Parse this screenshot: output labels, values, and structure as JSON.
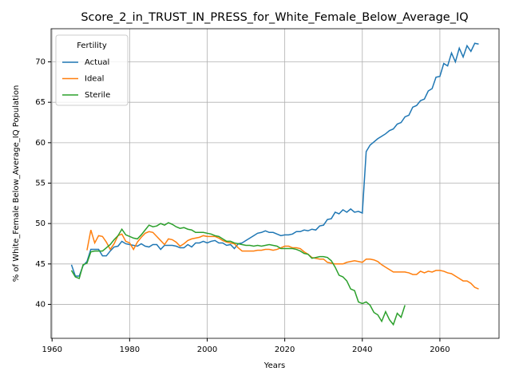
{
  "chart_data": {
    "type": "line",
    "title": "Score_2_in_TRUST_IN_PRESS_for_White_Female_Below_Average_IQ",
    "xlabel": "Years",
    "ylabel": "% of White_Female Below_Average_IQ Population",
    "legend_title": "Fertility",
    "legend_loc": "upper left",
    "grid": true,
    "xlim": [
      1959.75,
      2075.25
    ],
    "ylim": [
      35.8,
      74.1
    ],
    "xticks": [
      1960,
      1980,
      2000,
      2020,
      2040,
      2060
    ],
    "yticks": [
      40,
      45,
      50,
      55,
      60,
      65,
      70
    ],
    "x": [
      1965,
      1966,
      1967,
      1968,
      1969,
      1970,
      1971,
      1972,
      1973,
      1974,
      1975,
      1976,
      1977,
      1978,
      1979,
      1980,
      1981,
      1982,
      1983,
      1984,
      1985,
      1986,
      1987,
      1988,
      1989,
      1990,
      1991,
      1992,
      1993,
      1994,
      1995,
      1996,
      1997,
      1998,
      1999,
      2000,
      2001,
      2002,
      2003,
      2004,
      2005,
      2006,
      2007,
      2008,
      2009,
      2010,
      2011,
      2012,
      2013,
      2014,
      2015,
      2016,
      2017,
      2018,
      2019,
      2020,
      2021,
      2022,
      2023,
      2024,
      2025,
      2026,
      2027,
      2028,
      2029,
      2030,
      2031,
      2032,
      2033,
      2034,
      2035,
      2036,
      2037,
      2038,
      2039,
      2040,
      2041,
      2042,
      2043,
      2044,
      2045,
      2046,
      2047,
      2048,
      2049,
      2050,
      2051,
      2052,
      2053,
      2054,
      2055,
      2056,
      2057,
      2058,
      2059,
      2060,
      2061,
      2062,
      2063,
      2064,
      2065,
      2066,
      2067,
      2068,
      2069,
      2070
    ],
    "series": [
      {
        "name": "Actual",
        "color": "#1f77b4",
        "values": [
          44.9,
          43.5,
          43.5,
          44.8,
          45.3,
          46.8,
          46.8,
          46.8,
          46.0,
          46.0,
          46.6,
          47.1,
          47.2,
          47.8,
          47.5,
          47.4,
          47.3,
          47.2,
          47.5,
          47.2,
          47.1,
          47.4,
          47.4,
          46.8,
          47.3,
          47.3,
          47.3,
          47.2,
          47.0,
          47.0,
          47.4,
          47.1,
          47.6,
          47.6,
          47.8,
          47.6,
          47.8,
          47.9,
          47.6,
          47.6,
          47.3,
          47.4,
          46.9,
          47.5,
          47.6,
          47.9,
          48.2,
          48.5,
          48.8,
          48.9,
          49.1,
          48.9,
          48.9,
          48.7,
          48.5,
          48.6,
          48.6,
          48.7,
          49.0,
          49.0,
          49.2,
          49.1,
          49.3,
          49.2,
          49.7,
          49.8,
          50.5,
          50.6,
          51.4,
          51.2,
          51.7,
          51.4,
          51.8,
          51.4,
          51.5,
          51.3,
          58.9,
          59.7,
          60.1,
          60.5,
          60.8,
          61.1,
          61.5,
          61.7,
          62.3,
          62.5,
          63.2,
          63.4,
          64.4,
          64.6,
          65.2,
          65.4,
          66.4,
          66.7,
          68.1,
          68.2,
          69.8,
          69.5,
          71.1,
          70.0,
          71.7,
          70.6,
          72.0,
          71.3,
          72.3,
          72.2
        ]
      },
      {
        "name": "Ideal",
        "color": "#ff7f0e",
        "values": [
          null,
          null,
          null,
          null,
          46.7,
          49.2,
          47.6,
          48.5,
          48.4,
          47.7,
          46.8,
          47.5,
          48.5,
          48.7,
          47.8,
          47.6,
          46.8,
          47.7,
          48.3,
          48.8,
          49.0,
          48.9,
          48.4,
          47.9,
          47.4,
          48.1,
          48.0,
          47.7,
          47.2,
          47.5,
          47.9,
          48.1,
          48.2,
          48.3,
          48.5,
          48.4,
          48.4,
          48.4,
          48.2,
          47.9,
          47.7,
          47.6,
          47.5,
          47.0,
          46.6,
          46.6,
          46.6,
          46.6,
          46.7,
          46.7,
          46.8,
          46.8,
          46.7,
          46.8,
          47.0,
          47.2,
          47.2,
          47.0,
          47.0,
          46.9,
          46.5,
          46.2,
          45.8,
          45.7,
          45.6,
          45.6,
          45.2,
          45.1,
          45.0,
          45.0,
          45.0,
          45.2,
          45.3,
          45.4,
          45.3,
          45.2,
          45.6,
          45.6,
          45.5,
          45.3,
          44.9,
          44.6,
          44.3,
          44.0,
          44.0,
          44.0,
          44.0,
          43.9,
          43.7,
          43.7,
          44.1,
          43.9,
          44.1,
          44.0,
          44.2,
          44.2,
          44.1,
          43.9,
          43.8,
          43.5,
          43.2,
          42.9,
          42.9,
          42.6,
          42.1,
          41.9
        ]
      },
      {
        "name": "Sterile",
        "color": "#2ca02c",
        "values": [
          44.2,
          43.4,
          43.2,
          44.9,
          45.1,
          46.5,
          46.6,
          46.6,
          46.6,
          47.0,
          47.4,
          48.0,
          48.5,
          49.3,
          48.6,
          48.4,
          48.2,
          48.1,
          48.6,
          49.2,
          49.8,
          49.6,
          49.7,
          50.0,
          49.8,
          50.1,
          49.9,
          49.6,
          49.4,
          49.5,
          49.3,
          49.2,
          48.9,
          48.9,
          48.9,
          48.8,
          48.7,
          48.5,
          48.4,
          48.1,
          47.8,
          47.8,
          47.6,
          47.5,
          47.4,
          47.3,
          47.3,
          47.2,
          47.3,
          47.2,
          47.3,
          47.4,
          47.3,
          47.2,
          46.9,
          46.9,
          46.9,
          46.9,
          46.8,
          46.6,
          46.3,
          46.2,
          45.7,
          45.8,
          45.9,
          45.9,
          45.8,
          45.4,
          44.6,
          43.6,
          43.4,
          42.9,
          41.9,
          41.7,
          40.3,
          40.1,
          40.3,
          39.9,
          39.0,
          38.7,
          37.9,
          39.1,
          38.1,
          37.5,
          38.9,
          38.4,
          39.9,
          null,
          null,
          null,
          null,
          null,
          null,
          null,
          null,
          null,
          null,
          null,
          null,
          null,
          null,
          null,
          null,
          null,
          null,
          null
        ]
      }
    ]
  }
}
